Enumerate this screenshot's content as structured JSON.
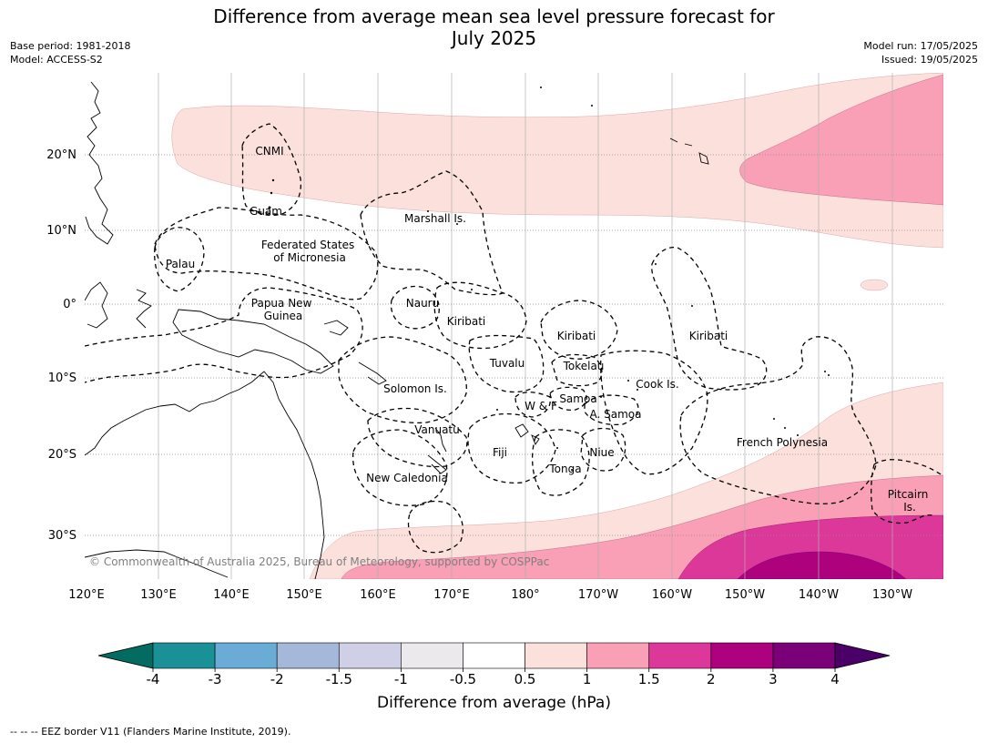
{
  "title_line1": "Difference from average mean sea level pressure forecast for",
  "title_line2": "July 2025",
  "meta_left": [
    "Base period: 1981-2018",
    "Model: ACCESS-S2"
  ],
  "meta_right": [
    "Model run: 17/05/2025",
    "Issued: 19/05/2025"
  ],
  "copyright": "© Commonwealth of Australia 2025, Bureau of Meteorology, supported by COSPPac",
  "lat_labels": [
    "20°N",
    "10°N",
    "0°",
    "10°S",
    "20°S",
    "30°S"
  ],
  "lon_labels": [
    "120°E",
    "130°E",
    "140°E",
    "150°E",
    "160°E",
    "170°E",
    "180°",
    "170°W",
    "160°W",
    "150°W",
    "140°W",
    "130°W"
  ],
  "eez_labels": [
    {
      "id": "cnmi",
      "text": [
        "CNMI"
      ]
    },
    {
      "id": "guam",
      "text": [
        "Guam"
      ]
    },
    {
      "id": "marshall",
      "text": [
        "Marshall Is."
      ]
    },
    {
      "id": "fsm",
      "text": [
        "Federated States",
        "of Micronesia"
      ]
    },
    {
      "id": "palau",
      "text": [
        "Palau"
      ]
    },
    {
      "id": "nauru",
      "text": [
        "Nauru"
      ]
    },
    {
      "id": "png",
      "text": [
        "Papua New",
        "Guinea"
      ]
    },
    {
      "id": "kiribati-w",
      "text": [
        "Kiribati"
      ]
    },
    {
      "id": "kiribati-c",
      "text": [
        "Kiribati"
      ]
    },
    {
      "id": "kiribati-e",
      "text": [
        "Kiribati"
      ]
    },
    {
      "id": "tuvalu",
      "text": [
        "Tuvalu"
      ]
    },
    {
      "id": "tokelau",
      "text": [
        "Tokelau"
      ]
    },
    {
      "id": "cook",
      "text": [
        "Cook Is."
      ]
    },
    {
      "id": "solomon",
      "text": [
        "Solomon Is."
      ]
    },
    {
      "id": "samoa",
      "text": [
        "Samoa"
      ]
    },
    {
      "id": "wf",
      "text": [
        "W & F"
      ]
    },
    {
      "id": "asamoa",
      "text": [
        "A. Samoa"
      ]
    },
    {
      "id": "vanuatu",
      "text": [
        "Vanuatu"
      ]
    },
    {
      "id": "fiji",
      "text": [
        "Fiji"
      ]
    },
    {
      "id": "niue",
      "text": [
        "Niue"
      ]
    },
    {
      "id": "tonga",
      "text": [
        "Tonga"
      ]
    },
    {
      "id": "newcal",
      "text": [
        "New Caledonia"
      ]
    },
    {
      "id": "frpoly",
      "text": [
        "French Polynesia"
      ]
    },
    {
      "id": "pitcairn",
      "text": [
        "Pitcairn",
        "Is."
      ]
    }
  ],
  "colorbar": {
    "ticks": [
      "-4",
      "-3",
      "-2",
      "-1.5",
      "-1",
      "-0.5",
      "0.5",
      "1",
      "1.5",
      "2",
      "3",
      "4"
    ],
    "low_color": "#046b60",
    "high_color": "#4b0068",
    "colors": [
      "#1a9097",
      "#6aacd6",
      "#a4b8da",
      "#cfcfe6",
      "#ece9ec",
      "#ffffff",
      "#fce0dc",
      "#f99fb6",
      "#dc389a",
      "#ad017e",
      "#7a0177"
    ],
    "title": "Difference from average (hPa)"
  },
  "footer": "--  --  -- EEZ border V11 (Flanders Marine Institute, 2019)."
}
